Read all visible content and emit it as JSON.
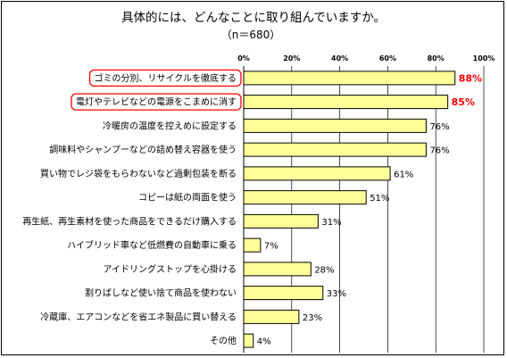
{
  "chart_data": {
    "type": "bar",
    "orientation": "horizontal",
    "title": "具体的には、どんなことに取り組んでいますか。",
    "subtitle": "（n＝680）",
    "categories": [
      "ゴミの分別、リサイクルを徹底する",
      "電灯やテレビなどの電源をこまめに消す",
      "冷暖房の温度を控えめに設定する",
      "調味料やシャンプーなどの詰め替え容器を使う",
      "買い物でレジ袋をもらわないなど過剰包装を断る",
      "コピーは紙の両面を使う",
      "再生紙、再生素材を使った商品をできるだけ購入する",
      "ハイブリッド車など低燃費の自動車に乗る",
      "アイドリングストップを心掛ける",
      "割りばしなど使い捨て商品を使わない",
      "冷蔵庫、エアコンなどを省エネ製品に買い替える",
      "その他"
    ],
    "values": [
      88,
      85,
      76,
      76,
      61,
      51,
      31,
      7,
      28,
      33,
      23,
      4
    ],
    "value_labels": [
      "88%",
      "85%",
      "76%",
      "76%",
      "61%",
      "51%",
      "31%",
      "7%",
      "28%",
      "33%",
      "23%",
      "4%"
    ],
    "highlighted": [
      0,
      1
    ],
    "xlim": [
      0,
      100
    ],
    "xticks": [
      "0%",
      "20%",
      "40%",
      "60%",
      "80%",
      "100%"
    ],
    "xtick_values": [
      0,
      20,
      40,
      60,
      80,
      100
    ],
    "grid": true,
    "bar_color": "#ffff99",
    "bar_edge_color": "#000000",
    "highlight_color": "#ff0000"
  }
}
